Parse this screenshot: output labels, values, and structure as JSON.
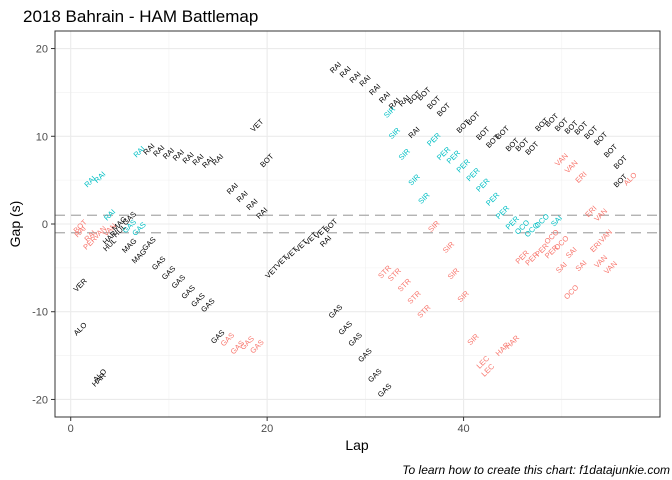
{
  "chart_data": {
    "type": "scatter",
    "title": "2018 Bahrain - HAM Battlemap",
    "xlabel": "Lap",
    "ylabel": "Gap (s)",
    "xlim": [
      -1.6,
      60
    ],
    "ylim": [
      -22,
      22
    ],
    "x_ticks": [
      0,
      20,
      40
    ],
    "y_ticks": [
      -20,
      -10,
      0,
      10,
      20
    ],
    "reference_lines": [
      1,
      -1
    ],
    "caption": "To learn how to create this chart: f1datajunkie.com",
    "colors": {
      "black": "#000000",
      "cyan": "#00BFC4",
      "salmon": "#F8766D"
    },
    "points": [
      {
        "x": 1,
        "y": -0.3,
        "label": "BOT",
        "color": "salmon"
      },
      {
        "x": 1,
        "y": -0.9,
        "label": "RAI",
        "color": "salmon"
      },
      {
        "x": 1,
        "y": -7.0,
        "label": "VER",
        "color": "black"
      },
      {
        "x": 1,
        "y": -12.0,
        "label": "ALO",
        "color": "black"
      },
      {
        "x": 2,
        "y": 4.8,
        "label": "RAI",
        "color": "cyan"
      },
      {
        "x": 2,
        "y": -2.2,
        "label": "PER",
        "color": "salmon"
      },
      {
        "x": 2,
        "y": -1.4,
        "label": "RAI",
        "color": "salmon"
      },
      {
        "x": 2.9,
        "y": -17.8,
        "label": "HAR",
        "color": "black"
      },
      {
        "x": 3,
        "y": 5.3,
        "label": "RAI",
        "color": "cyan"
      },
      {
        "x": 3,
        "y": -1.0,
        "label": "VAN",
        "color": "salmon"
      },
      {
        "x": 3,
        "y": -17.3,
        "label": "ALO",
        "color": "black"
      },
      {
        "x": 4,
        "y": 1.0,
        "label": "RAI",
        "color": "cyan"
      },
      {
        "x": 4,
        "y": -0.7,
        "label": "VAN",
        "color": "salmon"
      },
      {
        "x": 4,
        "y": -1.6,
        "label": "HAR",
        "color": "black"
      },
      {
        "x": 4,
        "y": -2.4,
        "label": "HUL",
        "color": "black"
      },
      {
        "x": 5,
        "y": -0.8,
        "label": "HUL",
        "color": "black"
      },
      {
        "x": 5,
        "y": 0.0,
        "label": "MAG",
        "color": "black"
      },
      {
        "x": 6,
        "y": 0.6,
        "label": "GAS",
        "color": "black"
      },
      {
        "x": 6,
        "y": -0.3,
        "label": "GAS",
        "color": "cyan"
      },
      {
        "x": 6,
        "y": -2.5,
        "label": "MAG",
        "color": "black"
      },
      {
        "x": 7,
        "y": 8.2,
        "label": "RAI",
        "color": "cyan"
      },
      {
        "x": 7,
        "y": -0.6,
        "label": "GAS",
        "color": "cyan"
      },
      {
        "x": 7,
        "y": -3.7,
        "label": "MAG",
        "color": "black"
      },
      {
        "x": 8,
        "y": 8.5,
        "label": "RAI",
        "color": "black"
      },
      {
        "x": 8,
        "y": -2.3,
        "label": "GAS",
        "color": "black"
      },
      {
        "x": 9,
        "y": 8.3,
        "label": "RAI",
        "color": "black"
      },
      {
        "x": 9,
        "y": -4.5,
        "label": "GAS",
        "color": "black"
      },
      {
        "x": 10,
        "y": 8.0,
        "label": "RAI",
        "color": "black"
      },
      {
        "x": 10,
        "y": -5.6,
        "label": "GAS",
        "color": "black"
      },
      {
        "x": 11,
        "y": 7.8,
        "label": "RAI",
        "color": "black"
      },
      {
        "x": 11,
        "y": -6.6,
        "label": "GAS",
        "color": "black"
      },
      {
        "x": 12,
        "y": 7.5,
        "label": "RAI",
        "color": "black"
      },
      {
        "x": 12,
        "y": -7.8,
        "label": "GAS",
        "color": "black"
      },
      {
        "x": 13,
        "y": 7.3,
        "label": "RAI",
        "color": "black"
      },
      {
        "x": 13,
        "y": -8.7,
        "label": "GAS",
        "color": "black"
      },
      {
        "x": 14,
        "y": 7.0,
        "label": "RAI",
        "color": "black"
      },
      {
        "x": 14,
        "y": -9.3,
        "label": "GAS",
        "color": "black"
      },
      {
        "x": 15,
        "y": 7.3,
        "label": "RAI",
        "color": "black"
      },
      {
        "x": 15,
        "y": -12.9,
        "label": "GAS",
        "color": "black"
      },
      {
        "x": 16,
        "y": -13.2,
        "label": "GAS",
        "color": "salmon"
      },
      {
        "x": 16.5,
        "y": 4.0,
        "label": "RAI",
        "color": "black"
      },
      {
        "x": 17,
        "y": -14.1,
        "label": "GAS",
        "color": "salmon"
      },
      {
        "x": 17.5,
        "y": 3.1,
        "label": "RAI",
        "color": "black"
      },
      {
        "x": 18,
        "y": -13.6,
        "label": "GAS",
        "color": "salmon"
      },
      {
        "x": 18.5,
        "y": 2.2,
        "label": "RAI",
        "color": "black"
      },
      {
        "x": 19,
        "y": -14.0,
        "label": "GAS",
        "color": "salmon"
      },
      {
        "x": 19,
        "y": 11.2,
        "label": "VET",
        "color": "black"
      },
      {
        "x": 19.5,
        "y": 1.2,
        "label": "RAI",
        "color": "black"
      },
      {
        "x": 20,
        "y": 7.2,
        "label": "BOT",
        "color": "black"
      },
      {
        "x": 20.5,
        "y": -5.5,
        "label": "VET",
        "color": "black"
      },
      {
        "x": 21.5,
        "y": -4.3,
        "label": "VET",
        "color": "black"
      },
      {
        "x": 22.5,
        "y": -3.4,
        "label": "VET",
        "color": "black"
      },
      {
        "x": 23.5,
        "y": -2.5,
        "label": "VET",
        "color": "black"
      },
      {
        "x": 24.5,
        "y": -1.7,
        "label": "VET",
        "color": "black"
      },
      {
        "x": 25.5,
        "y": -1.0,
        "label": "VET",
        "color": "black"
      },
      {
        "x": 26,
        "y": -2.0,
        "label": "RAI",
        "color": "black"
      },
      {
        "x": 26.5,
        "y": -0.2,
        "label": "BOT",
        "color": "black"
      },
      {
        "x": 27,
        "y": 17.8,
        "label": "RAI",
        "color": "black"
      },
      {
        "x": 27,
        "y": -10.0,
        "label": "GAS",
        "color": "black"
      },
      {
        "x": 28,
        "y": 17.3,
        "label": "RAI",
        "color": "black"
      },
      {
        "x": 28,
        "y": -11.9,
        "label": "GAS",
        "color": "black"
      },
      {
        "x": 29,
        "y": 16.7,
        "label": "RAI",
        "color": "black"
      },
      {
        "x": 29,
        "y": -13.2,
        "label": "GAS",
        "color": "black"
      },
      {
        "x": 30,
        "y": 16.3,
        "label": "RAI",
        "color": "black"
      },
      {
        "x": 30,
        "y": -15.0,
        "label": "GAS",
        "color": "black"
      },
      {
        "x": 31,
        "y": 15.3,
        "label": "RAI",
        "color": "black"
      },
      {
        "x": 31,
        "y": -17.3,
        "label": "GAS",
        "color": "black"
      },
      {
        "x": 32,
        "y": 14.4,
        "label": "RAI",
        "color": "black"
      },
      {
        "x": 32,
        "y": -5.5,
        "label": "STR",
        "color": "salmon"
      },
      {
        "x": 32,
        "y": -19.0,
        "label": "GAS",
        "color": "black"
      },
      {
        "x": 32.5,
        "y": 12.7,
        "label": "SIR",
        "color": "cyan"
      },
      {
        "x": 33,
        "y": 13.7,
        "label": "RAI",
        "color": "black"
      },
      {
        "x": 33,
        "y": 10.3,
        "label": "SIR",
        "color": "cyan"
      },
      {
        "x": 33,
        "y": -5.8,
        "label": "STR",
        "color": "salmon"
      },
      {
        "x": 34,
        "y": 14.0,
        "label": "RAI",
        "color": "black"
      },
      {
        "x": 34,
        "y": 7.9,
        "label": "SIR",
        "color": "cyan"
      },
      {
        "x": 34,
        "y": -7.0,
        "label": "STR",
        "color": "salmon"
      },
      {
        "x": 35,
        "y": 14.4,
        "label": "BOT",
        "color": "black"
      },
      {
        "x": 35,
        "y": 10.4,
        "label": "RAI",
        "color": "black"
      },
      {
        "x": 35,
        "y": 5.0,
        "label": "SIR",
        "color": "cyan"
      },
      {
        "x": 35,
        "y": -8.4,
        "label": "STR",
        "color": "salmon"
      },
      {
        "x": 36,
        "y": 14.8,
        "label": "BOT",
        "color": "black"
      },
      {
        "x": 36,
        "y": 2.9,
        "label": "SIR",
        "color": "cyan"
      },
      {
        "x": 36,
        "y": -10.0,
        "label": "STR",
        "color": "salmon"
      },
      {
        "x": 37,
        "y": 13.8,
        "label": "BOT",
        "color": "black"
      },
      {
        "x": 37,
        "y": 9.6,
        "label": "PER",
        "color": "cyan"
      },
      {
        "x": 37,
        "y": -0.3,
        "label": "SIR",
        "color": "salmon"
      },
      {
        "x": 38,
        "y": 13.0,
        "label": "BOT",
        "color": "black"
      },
      {
        "x": 38,
        "y": 8.0,
        "label": "PER",
        "color": "cyan"
      },
      {
        "x": 38.5,
        "y": -2.7,
        "label": "SIR",
        "color": "salmon"
      },
      {
        "x": 39,
        "y": 7.6,
        "label": "PER",
        "color": "cyan"
      },
      {
        "x": 39,
        "y": -5.7,
        "label": "SIR",
        "color": "salmon"
      },
      {
        "x": 40,
        "y": 11.1,
        "label": "BOT",
        "color": "black"
      },
      {
        "x": 40,
        "y": 6.6,
        "label": "PER",
        "color": "cyan"
      },
      {
        "x": 40,
        "y": -8.3,
        "label": "SIR",
        "color": "salmon"
      },
      {
        "x": 41,
        "y": 12.0,
        "label": "BOT",
        "color": "black"
      },
      {
        "x": 41,
        "y": 5.6,
        "label": "PER",
        "color": "cyan"
      },
      {
        "x": 41,
        "y": -13.2,
        "label": "SIR",
        "color": "salmon"
      },
      {
        "x": 42,
        "y": 10.3,
        "label": "BOT",
        "color": "black"
      },
      {
        "x": 42,
        "y": 4.4,
        "label": "PER",
        "color": "cyan"
      },
      {
        "x": 42,
        "y": -15.8,
        "label": "LEC",
        "color": "salmon"
      },
      {
        "x": 42.5,
        "y": -16.7,
        "label": "LEC",
        "color": "salmon"
      },
      {
        "x": 43,
        "y": 9.4,
        "label": "BOT",
        "color": "black"
      },
      {
        "x": 43,
        "y": 2.8,
        "label": "PER",
        "color": "cyan"
      },
      {
        "x": 44,
        "y": 10.4,
        "label": "BOT",
        "color": "black"
      },
      {
        "x": 44,
        "y": 1.3,
        "label": "PER",
        "color": "cyan"
      },
      {
        "x": 44,
        "y": -14.3,
        "label": "HAR",
        "color": "salmon"
      },
      {
        "x": 45,
        "y": 9.0,
        "label": "BOT",
        "color": "black"
      },
      {
        "x": 45,
        "y": 0.1,
        "label": "PER",
        "color": "cyan"
      },
      {
        "x": 45,
        "y": -13.5,
        "label": "HAR",
        "color": "salmon"
      },
      {
        "x": 46,
        "y": 9.0,
        "label": "BOT",
        "color": "black"
      },
      {
        "x": 46,
        "y": -0.4,
        "label": "OCO",
        "color": "cyan"
      },
      {
        "x": 46,
        "y": -3.8,
        "label": "PER",
        "color": "salmon"
      },
      {
        "x": 47,
        "y": 8.6,
        "label": "BOT",
        "color": "black"
      },
      {
        "x": 47,
        "y": -0.7,
        "label": "OCO",
        "color": "cyan"
      },
      {
        "x": 47,
        "y": -4.0,
        "label": "PER",
        "color": "salmon"
      },
      {
        "x": 48,
        "y": 11.3,
        "label": "BOT",
        "color": "black"
      },
      {
        "x": 48,
        "y": 0.3,
        "label": "OCO",
        "color": "cyan"
      },
      {
        "x": 48,
        "y": -3.0,
        "label": "PER",
        "color": "salmon"
      },
      {
        "x": 49,
        "y": 11.8,
        "label": "BOT",
        "color": "black"
      },
      {
        "x": 49,
        "y": -1.5,
        "label": "OCO",
        "color": "salmon"
      },
      {
        "x": 49,
        "y": -3.2,
        "label": "PER",
        "color": "salmon"
      },
      {
        "x": 49.5,
        "y": 0.3,
        "label": "SAI",
        "color": "cyan"
      },
      {
        "x": 50,
        "y": 11.3,
        "label": "BOT",
        "color": "black"
      },
      {
        "x": 50,
        "y": 7.3,
        "label": "VAN",
        "color": "salmon"
      },
      {
        "x": 50,
        "y": -2.2,
        "label": "OCO",
        "color": "salmon"
      },
      {
        "x": 50,
        "y": -5.0,
        "label": "SAI",
        "color": "salmon"
      },
      {
        "x": 51,
        "y": 11.0,
        "label": "BOT",
        "color": "black"
      },
      {
        "x": 51,
        "y": 6.5,
        "label": "VAN",
        "color": "salmon"
      },
      {
        "x": 51,
        "y": -3.3,
        "label": "SAI",
        "color": "salmon"
      },
      {
        "x": 51,
        "y": -7.8,
        "label": "OCO",
        "color": "salmon"
      },
      {
        "x": 52,
        "y": 10.9,
        "label": "BOT",
        "color": "black"
      },
      {
        "x": 52,
        "y": 5.3,
        "label": "ERI",
        "color": "salmon"
      },
      {
        "x": 52,
        "y": -4.8,
        "label": "SAI",
        "color": "salmon"
      },
      {
        "x": 53,
        "y": 10.4,
        "label": "BOT",
        "color": "black"
      },
      {
        "x": 53,
        "y": 1.4,
        "label": "ERI",
        "color": "salmon"
      },
      {
        "x": 53.5,
        "y": -2.6,
        "label": "ERI",
        "color": "salmon"
      },
      {
        "x": 54,
        "y": 9.7,
        "label": "BOT",
        "color": "black"
      },
      {
        "x": 54,
        "y": 1.0,
        "label": "VAN",
        "color": "salmon"
      },
      {
        "x": 54,
        "y": -4.3,
        "label": "VAN",
        "color": "salmon"
      },
      {
        "x": 54.5,
        "y": -1.4,
        "label": "VAN",
        "color": "salmon"
      },
      {
        "x": 55,
        "y": 8.3,
        "label": "BOT",
        "color": "black"
      },
      {
        "x": 55,
        "y": -5.0,
        "label": "VAN",
        "color": "salmon"
      },
      {
        "x": 56,
        "y": 7.0,
        "label": "BOT",
        "color": "black"
      },
      {
        "x": 56,
        "y": 4.9,
        "label": "BOT",
        "color": "black"
      },
      {
        "x": 57,
        "y": 5.1,
        "label": "ALO",
        "color": "salmon"
      }
    ]
  }
}
